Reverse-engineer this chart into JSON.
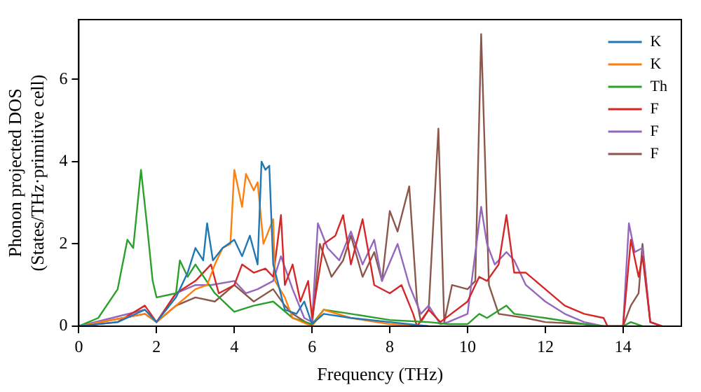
{
  "chart_data": {
    "type": "line",
    "xlabel": "Frequency (THz)",
    "ylabel": "Phonon projected DOS\n(States/THz·primitive cell)",
    "xlim": [
      0,
      15.5
    ],
    "ylim": [
      0,
      7.45
    ],
    "xticks": [
      0,
      2,
      4,
      6,
      8,
      10,
      12,
      14
    ],
    "yticks": [
      0,
      2,
      4,
      6
    ],
    "grid": false,
    "legend": "top right",
    "marker": "none",
    "line_style": "solid",
    "series": [
      {
        "name": "K",
        "color": "#1f77b4",
        "x": [
          0,
          1,
          1.7,
          2,
          2.5,
          2.8,
          3,
          3.2,
          3.3,
          3.45,
          3.7,
          4,
          4.2,
          4.4,
          4.6,
          4.7,
          4.8,
          4.9,
          5,
          5.3,
          5.6,
          5.8,
          6,
          6.3,
          7,
          8,
          9
        ],
        "values": [
          0,
          0.1,
          0.4,
          0.1,
          0.7,
          1.3,
          1.9,
          1.6,
          2.5,
          1.6,
          1.9,
          2.1,
          1.7,
          2.2,
          1.5,
          4,
          3.8,
          3.9,
          1.5,
          0.4,
          0.3,
          0.6,
          0.05,
          0.3,
          0.2,
          0.1,
          0
        ]
      },
      {
        "name": "K",
        "color": "#ff7f0e",
        "x": [
          0,
          1.7,
          2,
          2.5,
          3,
          3.3,
          3.5,
          3.7,
          3.9,
          4,
          4.2,
          4.3,
          4.5,
          4.6,
          4.75,
          5,
          5.05,
          5.3,
          5.5,
          6,
          6.3,
          7,
          8,
          9
        ],
        "values": [
          0,
          0.3,
          0.1,
          0.5,
          0.9,
          1,
          1.5,
          1.9,
          2,
          3.8,
          2.9,
          3.7,
          3.3,
          3.5,
          2,
          2.6,
          1.1,
          0.7,
          0.2,
          0,
          0.4,
          0.2,
          0.05,
          0
        ]
      },
      {
        "name": "Th",
        "color": "#2ca02c",
        "x": [
          0,
          0.5,
          1,
          1.25,
          1.4,
          1.6,
          1.75,
          1.9,
          2,
          2.5,
          2.6,
          2.8,
          3,
          3.5,
          4,
          4.5,
          5,
          5.5,
          6,
          6.3,
          7,
          8,
          9,
          9.5,
          10,
          10.3,
          10.5,
          11,
          11.2,
          12,
          13,
          13.5,
          14,
          14.2,
          14.5
        ],
        "values": [
          0,
          0.2,
          0.9,
          2.1,
          1.9,
          3.8,
          2.5,
          1.1,
          0.7,
          0.8,
          1.6,
          1.2,
          1.5,
          0.8,
          0.35,
          0.5,
          0.6,
          0.2,
          0.05,
          0.4,
          0.3,
          0.15,
          0.1,
          0.05,
          0.05,
          0.3,
          0.2,
          0.5,
          0.3,
          0.2,
          0.05,
          0,
          0,
          0.1,
          0
        ]
      },
      {
        "name": "F",
        "color": "#d62728",
        "x": [
          0,
          1,
          1.7,
          2,
          2.5,
          3,
          3.4,
          3.6,
          4,
          4.2,
          4.5,
          4.8,
          5,
          5.2,
          5.3,
          5.5,
          5.7,
          5.9,
          6,
          6.3,
          6.6,
          6.8,
          7,
          7.3,
          7.6,
          8,
          8.3,
          8.6,
          8.7,
          9,
          9.3,
          10,
          10.3,
          10.5,
          10.8,
          11,
          11.2,
          11.5,
          12,
          12.5,
          13,
          13.5,
          13.6,
          14,
          14.2,
          14.4,
          14.5,
          14.7,
          15
        ],
        "values": [
          0,
          0.1,
          0.5,
          0.1,
          0.8,
          1.1,
          1.5,
          0.8,
          1,
          1.5,
          1.3,
          1.4,
          1.2,
          2.7,
          1,
          1.5,
          0.6,
          1.1,
          0.2,
          2,
          2.2,
          2.7,
          1.5,
          2.6,
          1,
          0.8,
          1,
          0.3,
          0,
          0.4,
          0.1,
          0.6,
          1.2,
          1.1,
          1.5,
          2.7,
          1.3,
          1.3,
          0.9,
          0.5,
          0.3,
          0.2,
          0,
          0,
          2.1,
          1.2,
          1.7,
          0.1,
          0
        ]
      },
      {
        "name": "F",
        "color": "#9467bd",
        "x": [
          0,
          1.7,
          2,
          2.5,
          3,
          3.4,
          4,
          4.3,
          4.6,
          5,
          5.2,
          5.5,
          5.8,
          6,
          6.15,
          6.4,
          6.7,
          7,
          7.3,
          7.6,
          7.8,
          8.2,
          8.5,
          8.8,
          9,
          9.3,
          9.5,
          10,
          10.35,
          10.5,
          10.7,
          11,
          11.2,
          11.5,
          12,
          12.5,
          13,
          13.5,
          14,
          14.15,
          14.3,
          14.5,
          14.7,
          15
        ],
        "values": [
          0,
          0.4,
          0.1,
          0.8,
          1,
          1,
          1.1,
          0.8,
          0.9,
          1.1,
          1.7,
          0.9,
          0.2,
          0.1,
          2.5,
          1.9,
          1.6,
          2.3,
          1.5,
          2.1,
          1.1,
          2,
          1,
          0.3,
          0.5,
          0.05,
          0.1,
          0.3,
          2.9,
          2,
          1.5,
          1.8,
          1.6,
          1,
          0.6,
          0.3,
          0.1,
          0,
          0,
          2.5,
          1.8,
          1.9,
          0.1,
          0
        ]
      },
      {
        "name": "F",
        "color": "#8c564b",
        "x": [
          0,
          1.7,
          2,
          2.5,
          3,
          3.5,
          4,
          4.5,
          5,
          5.3,
          5.5,
          6,
          6.2,
          6.5,
          6.8,
          7,
          7.3,
          7.6,
          7.8,
          8,
          8.2,
          8.5,
          8.7,
          8.8,
          9,
          9.25,
          9.4,
          9.6,
          10,
          10.2,
          10.35,
          10.55,
          10.8,
          11.5,
          12,
          13,
          13.5,
          14,
          14.2,
          14.4,
          14.5,
          14.7,
          15
        ],
        "values": [
          0,
          0.3,
          0.1,
          0.5,
          0.7,
          0.6,
          1,
          0.6,
          0.9,
          0.5,
          0.3,
          0,
          2,
          1.2,
          1.6,
          2.2,
          1.2,
          1.8,
          1.1,
          2.8,
          2.3,
          3.4,
          0.6,
          0.1,
          0.4,
          4.8,
          0.1,
          1,
          0.9,
          1.1,
          7.1,
          1,
          0.3,
          0.2,
          0.1,
          0.05,
          0,
          0,
          0.5,
          0.8,
          2,
          0.1,
          0
        ]
      }
    ]
  }
}
